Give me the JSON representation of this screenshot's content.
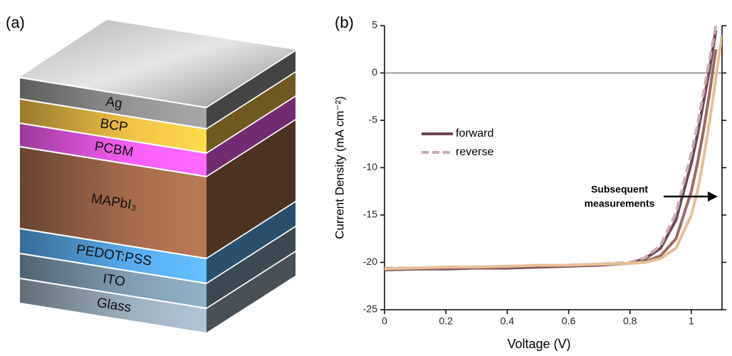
{
  "diagram": {
    "label": "(a)",
    "layers": [
      {
        "label": "Ag",
        "color": "#7c7c7c"
      },
      {
        "label": "BCP",
        "color": "#c9a23a"
      },
      {
        "label": "PCBM",
        "color": "#cf4fcc"
      },
      {
        "label": "MAPbI₃",
        "color": "#8a5a40"
      },
      {
        "label": "PEDOT:PSS",
        "color": "#4b8fc6"
      },
      {
        "label": "ITO",
        "color": "#6c8495"
      },
      {
        "label": "Glass",
        "color": "#84939f"
      }
    ]
  },
  "chart_data": {
    "type": "line",
    "panel_label": "(b)",
    "x_label": "Voltage (V)",
    "y_label": "Current Density (mA cm⁻²)",
    "xlim": [
      0,
      1.1
    ],
    "ylim": [
      -25,
      5
    ],
    "xticks": [
      0,
      0.2,
      0.4,
      0.6,
      0.8,
      1
    ],
    "yticks": [
      -25,
      -20,
      -15,
      -10,
      -5,
      0,
      5
    ],
    "hline": 0,
    "x": [
      0,
      0.1,
      0.2,
      0.3,
      0.4,
      0.5,
      0.6,
      0.7,
      0.8,
      0.85,
      0.9,
      0.95,
      1.0,
      1.02,
      1.04,
      1.06,
      1.08,
      1.1
    ],
    "series": [
      {
        "name": "forward",
        "color": "#6b4556",
        "dashed": false,
        "values": [
          -20.8,
          -20.7,
          -20.7,
          -20.6,
          -20.6,
          -20.5,
          -20.4,
          -20.3,
          -20.1,
          -19.6,
          -18.5,
          -15.5,
          -9.5,
          -6.5,
          -3,
          0.5,
          4.5,
          null
        ]
      },
      {
        "name": "reverse",
        "color": "#c8adb3",
        "dashed": true,
        "values": [
          -20.6,
          -20.6,
          -20.5,
          -20.5,
          -20.4,
          -20.4,
          -20.3,
          -20.2,
          -20.0,
          -19.5,
          -18.2,
          -14.8,
          -8.5,
          -5.5,
          -2,
          1.5,
          5,
          null
        ]
      },
      {
        "color": "#9b6a63",
        "dashed": false,
        "values": [
          -20.7,
          -20.6,
          -20.6,
          -20.5,
          -20.5,
          -20.4,
          -20.3,
          -20.2,
          -20.1,
          -19.9,
          -19.3,
          -17.5,
          -12.5,
          -9.5,
          -6,
          -2,
          2.5,
          null
        ]
      },
      {
        "color": "#e6bf97",
        "dashed": false,
        "values": [
          -20.7,
          -20.6,
          -20.5,
          -20.5,
          -20.4,
          -20.3,
          -20.3,
          -20.2,
          -20.1,
          -20.0,
          -19.6,
          -18.5,
          -15,
          -12.5,
          -9,
          -5,
          -0.5,
          4
        ]
      }
    ],
    "annotation": [
      "Subsequent",
      "measurements"
    ]
  }
}
